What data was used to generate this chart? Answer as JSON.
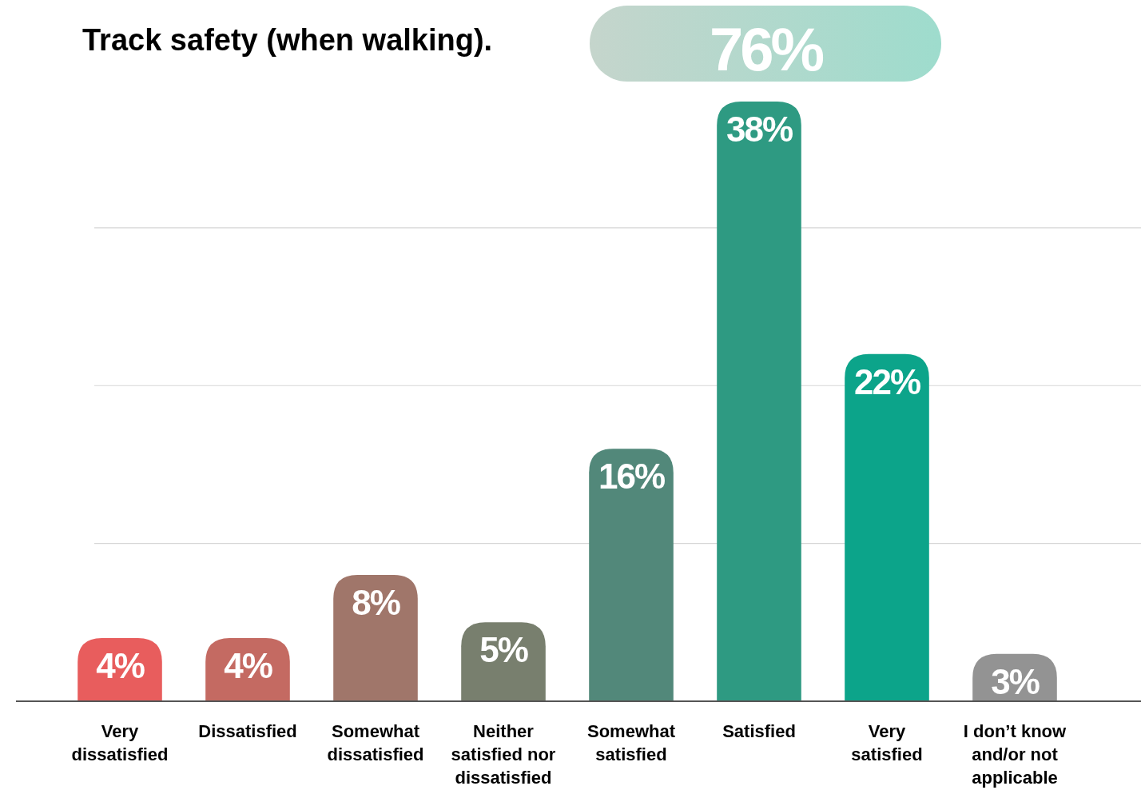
{
  "chart_data": {
    "type": "bar",
    "title": "Track safety (when walking).",
    "categories": [
      "Very dissatisfied",
      "Dissatisfied",
      "Somewhat dissatisfied",
      "Neither satisfied nor dissatisfied",
      "Somewhat satisfied",
      "Satisfied",
      "Very satisfied",
      "I don’t know and/or not applicable"
    ],
    "values": [
      4,
      4,
      8,
      5,
      16,
      38,
      22,
      3
    ],
    "value_labels": [
      "4%",
      "4%",
      "8%",
      "5%",
      "16%",
      "38%",
      "22%",
      "3%"
    ],
    "colors": [
      "#e85d5d",
      "#c46a62",
      "#a0766a",
      "#787f6e",
      "#52887a",
      "#2e9a82",
      "#0ca48a",
      "#939393"
    ],
    "yticks": [
      {
        "value": 10,
        "label": null
      },
      {
        "value": 20,
        "label": null
      },
      {
        "value": 30,
        "label": null
      }
    ],
    "grid": "y",
    "annotations": [
      "76%"
    ]
  }
}
